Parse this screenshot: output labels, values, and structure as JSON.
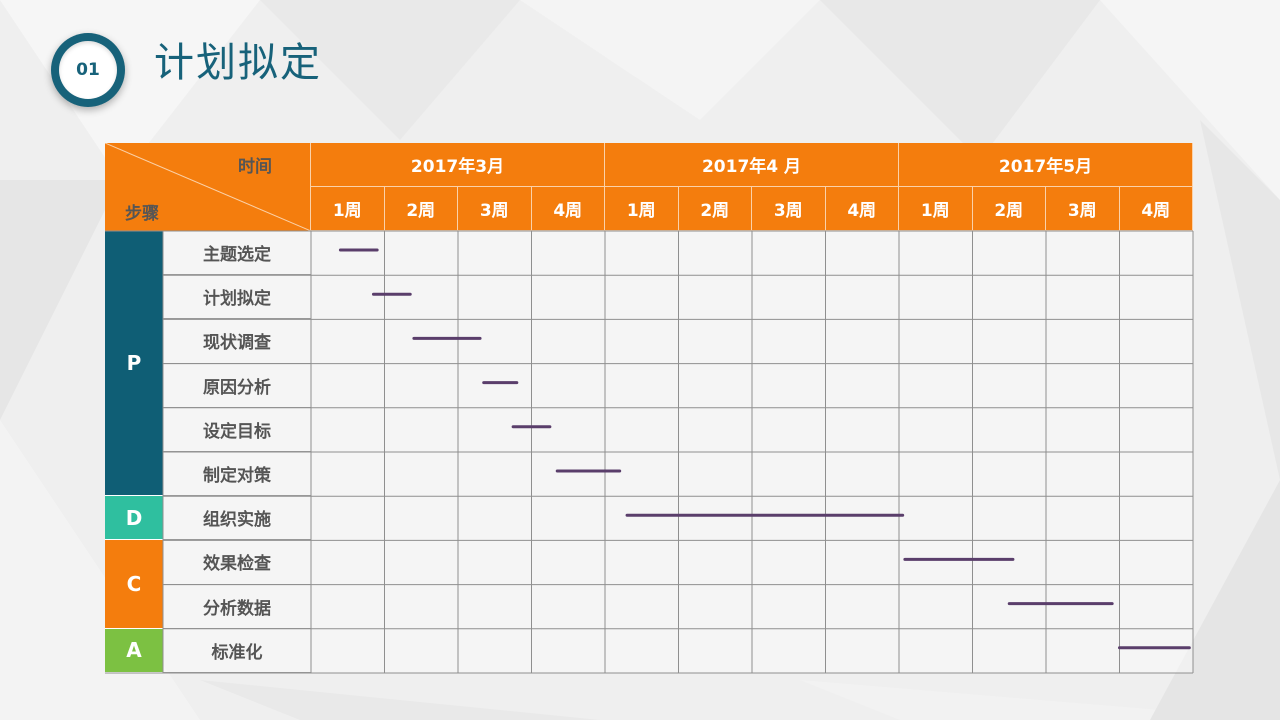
{
  "slide": {
    "badge": "01",
    "title": "计划拟定"
  },
  "header": {
    "time_label": "时间",
    "step_label": "步骤",
    "months": [
      {
        "label": "2017年3月"
      },
      {
        "label": "2017年4 月"
      },
      {
        "label": "2017年5月"
      }
    ],
    "weeks": [
      "1周",
      "2周",
      "3周",
      "4周",
      "1周",
      "2周",
      "3周",
      "4周",
      "1周",
      "2周",
      "3周",
      "4周"
    ]
  },
  "phases": [
    {
      "label": "P",
      "rows": 6,
      "color": "#0f5e75"
    },
    {
      "label": "D",
      "rows": 1,
      "color": "#2fbf9f"
    },
    {
      "label": "C",
      "rows": 2,
      "color": "#f47d0d"
    },
    {
      "label": "A",
      "rows": 1,
      "color": "#7cc142"
    }
  ],
  "steps": [
    {
      "label": "主题选定",
      "start_week": 1.4,
      "end_week": 1.9
    },
    {
      "label": "计划拟定",
      "start_week": 1.85,
      "end_week": 2.35
    },
    {
      "label": "现状调查",
      "start_week": 2.4,
      "end_week": 3.3
    },
    {
      "label": "原因分析",
      "start_week": 3.35,
      "end_week": 3.8
    },
    {
      "label": "设定目标",
      "start_week": 3.75,
      "end_week": 4.25
    },
    {
      "label": "制定对策",
      "start_week": 4.35,
      "end_week": 5.2
    },
    {
      "label": "组织实施",
      "start_week": 5.3,
      "end_week": 9.05
    },
    {
      "label": "效果检查",
      "start_week": 9.08,
      "end_week": 10.55
    },
    {
      "label": "分析数据",
      "start_week": 10.5,
      "end_week": 11.9
    },
    {
      "label": "标准化",
      "start_week": 12.0,
      "end_week": 12.95
    }
  ],
  "colors": {
    "header": "#f47d0d",
    "bar": "#5a3e6b",
    "title": "#17627a",
    "grid": "#8f8f8f"
  }
}
